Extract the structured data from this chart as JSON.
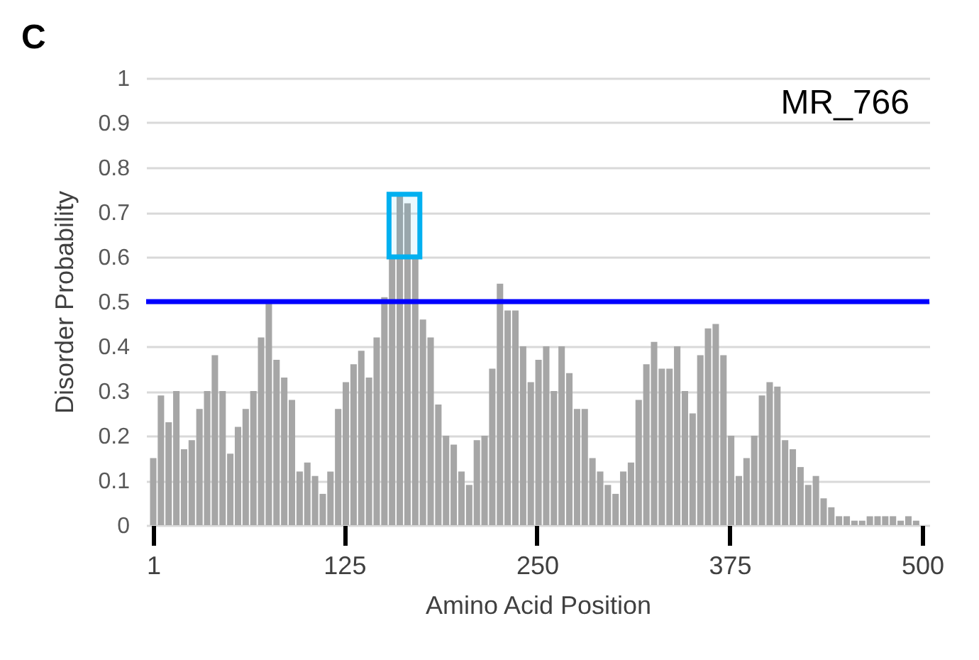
{
  "chart_data": {
    "type": "bar",
    "title": "C",
    "xlabel": "Amino Acid Position",
    "ylabel": "Disorder Probability",
    "annotations": [
      "MR_766"
    ],
    "x": [
      1,
      6,
      11,
      16,
      21,
      26,
      31,
      36,
      41,
      46,
      51,
      56,
      61,
      66,
      71,
      76,
      81,
      86,
      91,
      96,
      101,
      106,
      111,
      116,
      121,
      126,
      131,
      136,
      141,
      146,
      151,
      156,
      161,
      166,
      171,
      176,
      181,
      186,
      191,
      196,
      201,
      206,
      211,
      216,
      221,
      226,
      231,
      236,
      241,
      246,
      251,
      256,
      261,
      266,
      271,
      276,
      281,
      286,
      291,
      296,
      301,
      306,
      311,
      316,
      321,
      326,
      331,
      336,
      341,
      346,
      351,
      356,
      361,
      366,
      371,
      376,
      381,
      386,
      391,
      396,
      401,
      406,
      411,
      416,
      421,
      426,
      431,
      436,
      441,
      446,
      451,
      456,
      461,
      466,
      471,
      476,
      481,
      486,
      491,
      496
    ],
    "series": [
      {
        "color": "#a6a6a6",
        "values": [
          0.15,
          0.29,
          0.23,
          0.3,
          0.17,
          0.19,
          0.26,
          0.3,
          0.38,
          0.3,
          0.16,
          0.22,
          0.26,
          0.3,
          0.42,
          0.5,
          0.37,
          0.33,
          0.28,
          0.12,
          0.14,
          0.11,
          0.07,
          0.12,
          0.26,
          0.32,
          0.36,
          0.39,
          0.33,
          0.42,
          0.51,
          0.6,
          0.74,
          0.72,
          0.6,
          0.46,
          0.42,
          0.27,
          0.2,
          0.18,
          0.12,
          0.09,
          0.19,
          0.2,
          0.35,
          0.54,
          0.48,
          0.48,
          0.4,
          0.32,
          0.37,
          0.4,
          0.3,
          0.4,
          0.34,
          0.26,
          0.26,
          0.15,
          0.12,
          0.09,
          0.07,
          0.12,
          0.14,
          0.28,
          0.36,
          0.41,
          0.35,
          0.35,
          0.4,
          0.3,
          0.25,
          0.38,
          0.44,
          0.45,
          0.38,
          0.2,
          0.11,
          0.15,
          0.2,
          0.29,
          0.32,
          0.31,
          0.19,
          0.17,
          0.13,
          0.09,
          0.11,
          0.06,
          0.04,
          0.02,
          0.02,
          0.01,
          0.01,
          0.02,
          0.02,
          0.02,
          0.02,
          0.01,
          0.02,
          0.01
        ]
      }
    ],
    "xlim": [
      1,
      500
    ],
    "xticks": [
      1,
      125,
      250,
      375,
      500
    ],
    "ylim": [
      0,
      1
    ],
    "yticks": [
      0,
      0.1,
      0.2,
      0.3,
      0.4,
      0.5,
      0.6,
      0.7,
      0.8,
      0.9,
      1
    ],
    "grid": "y",
    "ref_lines": [
      {
        "axis": "y",
        "value": 0.5,
        "color": "#0000ff"
      }
    ],
    "bands": [
      {
        "axis": "x",
        "from": 154,
        "to": 174,
        "color": "#00b0f0"
      }
    ]
  }
}
